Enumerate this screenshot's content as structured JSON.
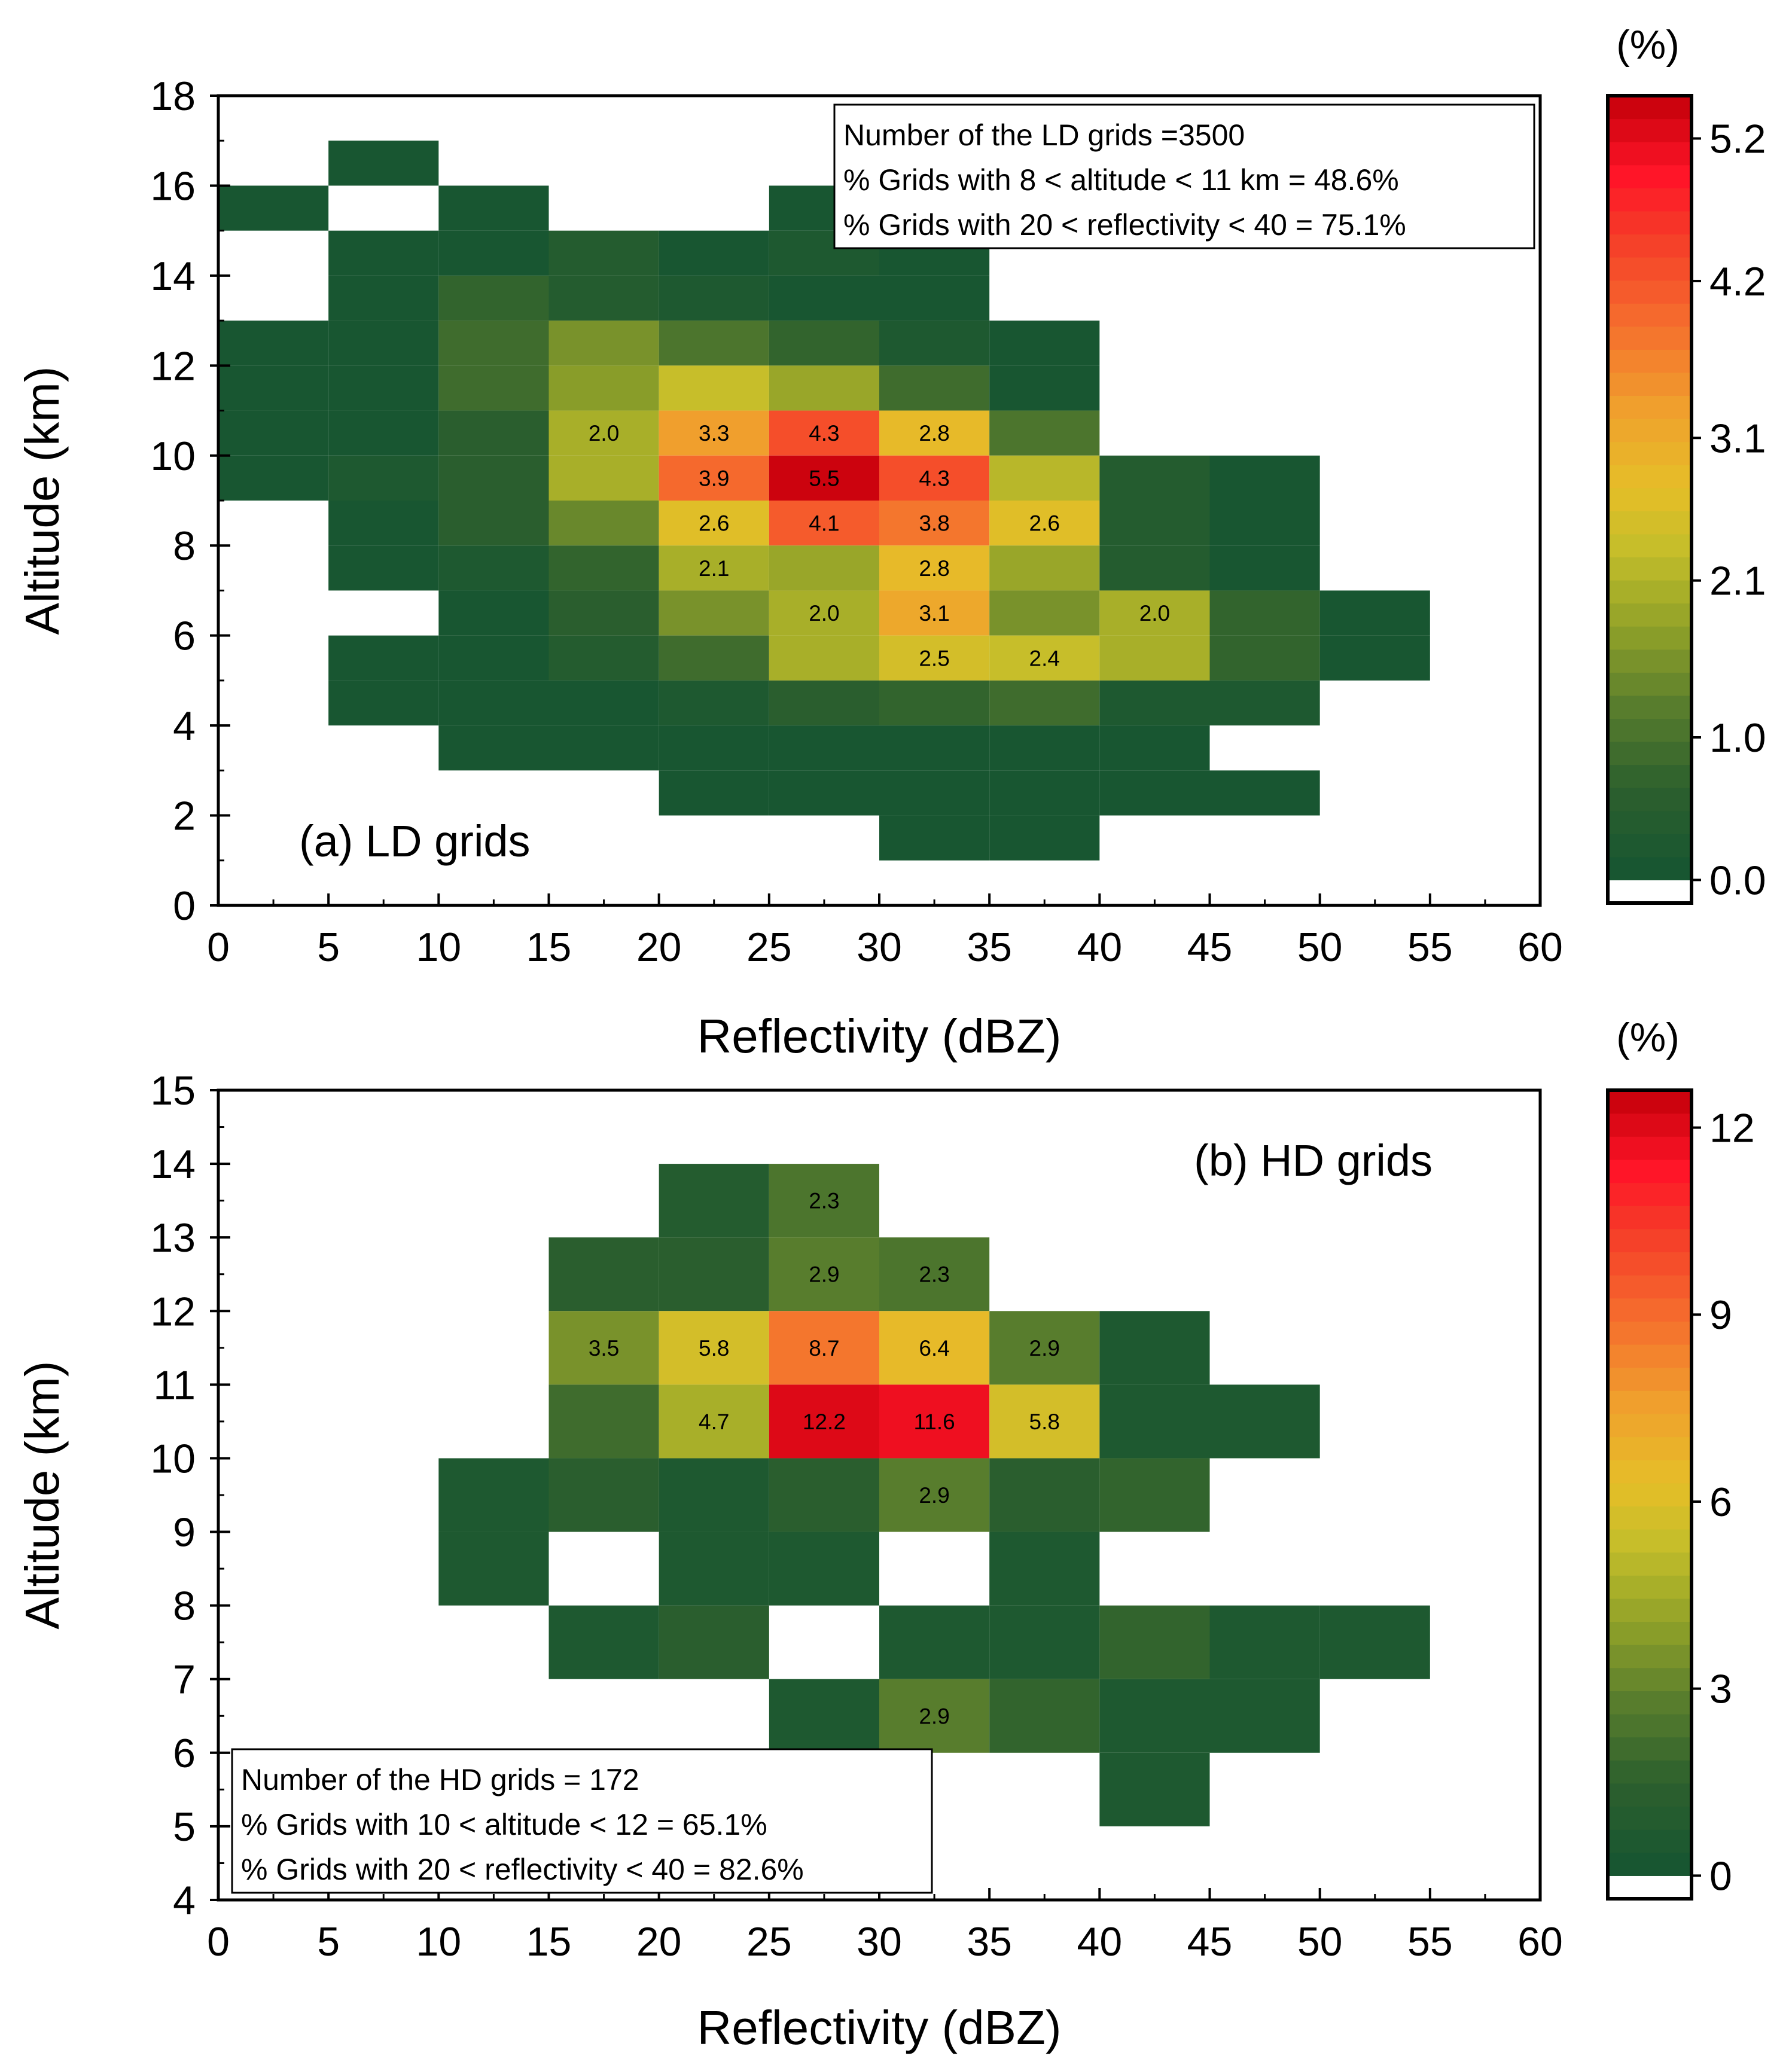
{
  "chart_data": [
    {
      "type": "heatmap",
      "panel_label": "(a) LD grids",
      "xlabel": "Reflectivity (dBZ)",
      "ylabel": "Altitude (km)",
      "xlim": [
        0,
        60
      ],
      "ylim": [
        0,
        18
      ],
      "x_ticks": [
        "0",
        "5",
        "10",
        "15",
        "20",
        "25",
        "30",
        "35",
        "40",
        "45",
        "50",
        "55",
        "60"
      ],
      "y_ticks": [
        "0",
        "2",
        "4",
        "6",
        "8",
        "10",
        "12",
        "14",
        "16",
        "18"
      ],
      "x_bin_size": 5,
      "y_bin_size": 1,
      "info_lines": [
        "Number of the LD grids =3500",
        "% Grids with 8 < altitude < 11 km = 48.6%",
        "% Grids with 20 < reflectivity < 40 = 75.1%"
      ],
      "colorbar": {
        "unit": "(%)",
        "max": 5.5,
        "ticks": [
          "0.0",
          "1.0",
          "2.1",
          "3.1",
          "4.2",
          "5.2"
        ]
      },
      "cells": [
        {
          "x": 5,
          "y": 16,
          "v": 0.05
        },
        {
          "x": 0,
          "y": 15,
          "v": 0.05
        },
        {
          "x": 10,
          "y": 15,
          "v": 0.05
        },
        {
          "x": 25,
          "y": 15,
          "v": 0.05
        },
        {
          "x": 5,
          "y": 14,
          "v": 0.05
        },
        {
          "x": 10,
          "y": 14,
          "v": 0.05
        },
        {
          "x": 15,
          "y": 14,
          "v": 0.35
        },
        {
          "x": 20,
          "y": 14,
          "v": 0.05
        },
        {
          "x": 25,
          "y": 14,
          "v": 0.2
        },
        {
          "x": 30,
          "y": 14,
          "v": 0.05
        },
        {
          "x": 5,
          "y": 13,
          "v": 0.05
        },
        {
          "x": 10,
          "y": 13,
          "v": 0.7
        },
        {
          "x": 15,
          "y": 13,
          "v": 0.45
        },
        {
          "x": 20,
          "y": 13,
          "v": 0.3
        },
        {
          "x": 25,
          "y": 13,
          "v": 0.05
        },
        {
          "x": 30,
          "y": 13,
          "v": 0.05
        },
        {
          "x": 0,
          "y": 12,
          "v": 0.05
        },
        {
          "x": 5,
          "y": 12,
          "v": 0.05
        },
        {
          "x": 10,
          "y": 12,
          "v": 0.9
        },
        {
          "x": 15,
          "y": 12,
          "v": 1.5
        },
        {
          "x": 20,
          "y": 12,
          "v": 1.1
        },
        {
          "x": 25,
          "y": 12,
          "v": 0.75
        },
        {
          "x": 30,
          "y": 12,
          "v": 0.3
        },
        {
          "x": 35,
          "y": 12,
          "v": 0.05
        },
        {
          "x": 0,
          "y": 11,
          "v": 0.05
        },
        {
          "x": 5,
          "y": 11,
          "v": 0.05
        },
        {
          "x": 10,
          "y": 11,
          "v": 0.85
        },
        {
          "x": 15,
          "y": 11,
          "v": 1.75
        },
        {
          "x": 20,
          "y": 11,
          "v": 2.35
        },
        {
          "x": 25,
          "y": 11,
          "v": 1.8
        },
        {
          "x": 30,
          "y": 11,
          "v": 0.9
        },
        {
          "x": 35,
          "y": 11,
          "v": 0.05
        },
        {
          "x": 0,
          "y": 10,
          "v": 0.05
        },
        {
          "x": 5,
          "y": 10,
          "v": 0.05
        },
        {
          "x": 10,
          "y": 10,
          "v": 0.6
        },
        {
          "x": 15,
          "y": 10,
          "v": 2.0,
          "label": "2.0"
        },
        {
          "x": 20,
          "y": 10,
          "v": 3.3,
          "label": "3.3"
        },
        {
          "x": 25,
          "y": 10,
          "v": 4.3,
          "label": "4.3"
        },
        {
          "x": 30,
          "y": 10,
          "v": 2.8,
          "label": "2.8"
        },
        {
          "x": 35,
          "y": 10,
          "v": 1.1
        },
        {
          "x": 0,
          "y": 9,
          "v": 0.05
        },
        {
          "x": 5,
          "y": 9,
          "v": 0.2
        },
        {
          "x": 10,
          "y": 9,
          "v": 0.6
        },
        {
          "x": 15,
          "y": 9,
          "v": 2.0
        },
        {
          "x": 20,
          "y": 9,
          "v": 3.9,
          "label": "3.9"
        },
        {
          "x": 25,
          "y": 9,
          "v": 5.5,
          "label": "5.5"
        },
        {
          "x": 30,
          "y": 9,
          "v": 4.3,
          "label": "4.3"
        },
        {
          "x": 35,
          "y": 9,
          "v": 2.2
        },
        {
          "x": 40,
          "y": 9,
          "v": 0.35
        },
        {
          "x": 45,
          "y": 9,
          "v": 0.05
        },
        {
          "x": 5,
          "y": 8,
          "v": 0.05
        },
        {
          "x": 10,
          "y": 8,
          "v": 0.5
        },
        {
          "x": 15,
          "y": 8,
          "v": 1.3
        },
        {
          "x": 20,
          "y": 8,
          "v": 2.6,
          "label": "2.6"
        },
        {
          "x": 25,
          "y": 8,
          "v": 4.1,
          "label": "4.1"
        },
        {
          "x": 30,
          "y": 8,
          "v": 3.8,
          "label": "3.8"
        },
        {
          "x": 35,
          "y": 8,
          "v": 2.6,
          "label": "2.6"
        },
        {
          "x": 40,
          "y": 8,
          "v": 0.45
        },
        {
          "x": 45,
          "y": 8,
          "v": 0.05
        },
        {
          "x": 5,
          "y": 7,
          "v": 0.05
        },
        {
          "x": 10,
          "y": 7,
          "v": 0.25
        },
        {
          "x": 15,
          "y": 7,
          "v": 0.8
        },
        {
          "x": 20,
          "y": 7,
          "v": 2.1,
          "label": "2.1"
        },
        {
          "x": 25,
          "y": 7,
          "v": 1.85
        },
        {
          "x": 30,
          "y": 7,
          "v": 2.8,
          "label": "2.8"
        },
        {
          "x": 35,
          "y": 7,
          "v": 1.85
        },
        {
          "x": 40,
          "y": 7,
          "v": 0.45
        },
        {
          "x": 45,
          "y": 7,
          "v": 0.05
        },
        {
          "x": 10,
          "y": 6,
          "v": 0.05
        },
        {
          "x": 15,
          "y": 6,
          "v": 0.5
        },
        {
          "x": 20,
          "y": 6,
          "v": 1.6
        },
        {
          "x": 25,
          "y": 6,
          "v": 2.0,
          "label": "2.0"
        },
        {
          "x": 30,
          "y": 6,
          "v": 3.1,
          "label": "3.1"
        },
        {
          "x": 35,
          "y": 6,
          "v": 1.55
        },
        {
          "x": 40,
          "y": 6,
          "v": 2.0,
          "label": "2.0"
        },
        {
          "x": 45,
          "y": 6,
          "v": 0.75
        },
        {
          "x": 50,
          "y": 6,
          "v": 0.05
        },
        {
          "x": 5,
          "y": 5,
          "v": 0.05
        },
        {
          "x": 10,
          "y": 5,
          "v": 0.05
        },
        {
          "x": 15,
          "y": 5,
          "v": 0.35
        },
        {
          "x": 20,
          "y": 5,
          "v": 0.85
        },
        {
          "x": 25,
          "y": 5,
          "v": 1.95
        },
        {
          "x": 30,
          "y": 5,
          "v": 2.5,
          "label": "2.5"
        },
        {
          "x": 35,
          "y": 5,
          "v": 2.4,
          "label": "2.4"
        },
        {
          "x": 40,
          "y": 5,
          "v": 2.0
        },
        {
          "x": 45,
          "y": 5,
          "v": 0.75
        },
        {
          "x": 50,
          "y": 5,
          "v": 0.05
        },
        {
          "x": 5,
          "y": 4,
          "v": 0.05
        },
        {
          "x": 10,
          "y": 4,
          "v": 0.05
        },
        {
          "x": 15,
          "y": 4,
          "v": 0.05
        },
        {
          "x": 20,
          "y": 4,
          "v": 0.25
        },
        {
          "x": 25,
          "y": 4,
          "v": 0.55
        },
        {
          "x": 30,
          "y": 4,
          "v": 0.75
        },
        {
          "x": 35,
          "y": 4,
          "v": 0.9
        },
        {
          "x": 40,
          "y": 4,
          "v": 0.3
        },
        {
          "x": 45,
          "y": 4,
          "v": 0.3
        },
        {
          "x": 10,
          "y": 3,
          "v": 0.05
        },
        {
          "x": 15,
          "y": 3,
          "v": 0.05
        },
        {
          "x": 20,
          "y": 3,
          "v": 0.05
        },
        {
          "x": 25,
          "y": 3,
          "v": 0.05
        },
        {
          "x": 30,
          "y": 3,
          "v": 0.05
        },
        {
          "x": 35,
          "y": 3,
          "v": 0.05
        },
        {
          "x": 40,
          "y": 3,
          "v": 0.15
        },
        {
          "x": 20,
          "y": 2,
          "v": 0.05
        },
        {
          "x": 25,
          "y": 2,
          "v": 0.05
        },
        {
          "x": 30,
          "y": 2,
          "v": 0.05
        },
        {
          "x": 35,
          "y": 2,
          "v": 0.05
        },
        {
          "x": 40,
          "y": 2,
          "v": 0.05
        },
        {
          "x": 45,
          "y": 2,
          "v": 0.05
        },
        {
          "x": 30,
          "y": 1,
          "v": 0.05
        },
        {
          "x": 35,
          "y": 1,
          "v": 0.05
        }
      ]
    },
    {
      "type": "heatmap",
      "panel_label": "(b) HD grids",
      "xlabel": "Reflectivity (dBZ)",
      "ylabel": "Altitude (km)",
      "xlim": [
        0,
        60
      ],
      "ylim": [
        4,
        15
      ],
      "x_ticks": [
        "0",
        "5",
        "10",
        "15",
        "20",
        "25",
        "30",
        "35",
        "40",
        "45",
        "50",
        "55",
        "60"
      ],
      "y_ticks": [
        "4",
        "5",
        "6",
        "7",
        "8",
        "9",
        "10",
        "11",
        "12",
        "13",
        "14",
        "15"
      ],
      "x_bin_size": 5,
      "y_bin_size": 1,
      "info_lines": [
        "Number of the HD grids = 172",
        "% Grids with 10 < altitude < 12 = 65.1%",
        "% Grids with 20 < reflectivity < 40 = 82.6%"
      ],
      "colorbar": {
        "unit": "(%)",
        "max": 12.6,
        "ticks": [
          "0",
          "3",
          "6",
          "9",
          "12"
        ]
      },
      "cells": [
        {
          "x": 20,
          "y": 13,
          "v": 1.0
        },
        {
          "x": 25,
          "y": 13,
          "v": 2.3,
          "label": "2.3"
        },
        {
          "x": 15,
          "y": 12,
          "v": 1.3
        },
        {
          "x": 20,
          "y": 12,
          "v": 1.3
        },
        {
          "x": 25,
          "y": 12,
          "v": 2.9,
          "label": "2.9"
        },
        {
          "x": 30,
          "y": 12,
          "v": 2.3,
          "label": "2.3"
        },
        {
          "x": 15,
          "y": 11,
          "v": 3.5,
          "label": "3.5"
        },
        {
          "x": 20,
          "y": 11,
          "v": 5.8,
          "label": "5.8"
        },
        {
          "x": 25,
          "y": 11,
          "v": 8.7,
          "label": "8.7"
        },
        {
          "x": 30,
          "y": 11,
          "v": 6.4,
          "label": "6.4"
        },
        {
          "x": 35,
          "y": 11,
          "v": 2.9,
          "label": "2.9"
        },
        {
          "x": 40,
          "y": 11,
          "v": 0.6
        },
        {
          "x": 15,
          "y": 10,
          "v": 2.0
        },
        {
          "x": 20,
          "y": 10,
          "v": 4.7,
          "label": "4.7"
        },
        {
          "x": 25,
          "y": 10,
          "v": 12.2,
          "label": "12.2"
        },
        {
          "x": 30,
          "y": 10,
          "v": 11.6,
          "label": "11.6"
        },
        {
          "x": 35,
          "y": 10,
          "v": 5.8,
          "label": "5.8"
        },
        {
          "x": 40,
          "y": 10,
          "v": 0.6
        },
        {
          "x": 45,
          "y": 10,
          "v": 0.6
        },
        {
          "x": 10,
          "y": 9,
          "v": 0.6
        },
        {
          "x": 15,
          "y": 9,
          "v": 1.2
        },
        {
          "x": 20,
          "y": 9,
          "v": 0.6
        },
        {
          "x": 25,
          "y": 9,
          "v": 1.2
        },
        {
          "x": 30,
          "y": 9,
          "v": 2.9,
          "label": "2.9"
        },
        {
          "x": 35,
          "y": 9,
          "v": 1.2
        },
        {
          "x": 40,
          "y": 9,
          "v": 1.7
        },
        {
          "x": 10,
          "y": 8,
          "v": 0.6
        },
        {
          "x": 20,
          "y": 8,
          "v": 0.6
        },
        {
          "x": 25,
          "y": 8,
          "v": 0.6
        },
        {
          "x": 35,
          "y": 8,
          "v": 0.6
        },
        {
          "x": 15,
          "y": 7,
          "v": 0.6
        },
        {
          "x": 20,
          "y": 7,
          "v": 1.2
        },
        {
          "x": 30,
          "y": 7,
          "v": 0.6
        },
        {
          "x": 35,
          "y": 7,
          "v": 0.6
        },
        {
          "x": 40,
          "y": 7,
          "v": 1.7
        },
        {
          "x": 45,
          "y": 7,
          "v": 0.6
        },
        {
          "x": 50,
          "y": 7,
          "v": 0.6
        },
        {
          "x": 25,
          "y": 6,
          "v": 0.6
        },
        {
          "x": 30,
          "y": 6,
          "v": 2.9,
          "label": "2.9"
        },
        {
          "x": 35,
          "y": 6,
          "v": 1.7
        },
        {
          "x": 40,
          "y": 6,
          "v": 0.6
        },
        {
          "x": 45,
          "y": 6,
          "v": 0.6
        },
        {
          "x": 40,
          "y": 5,
          "v": 0.6
        }
      ]
    }
  ]
}
